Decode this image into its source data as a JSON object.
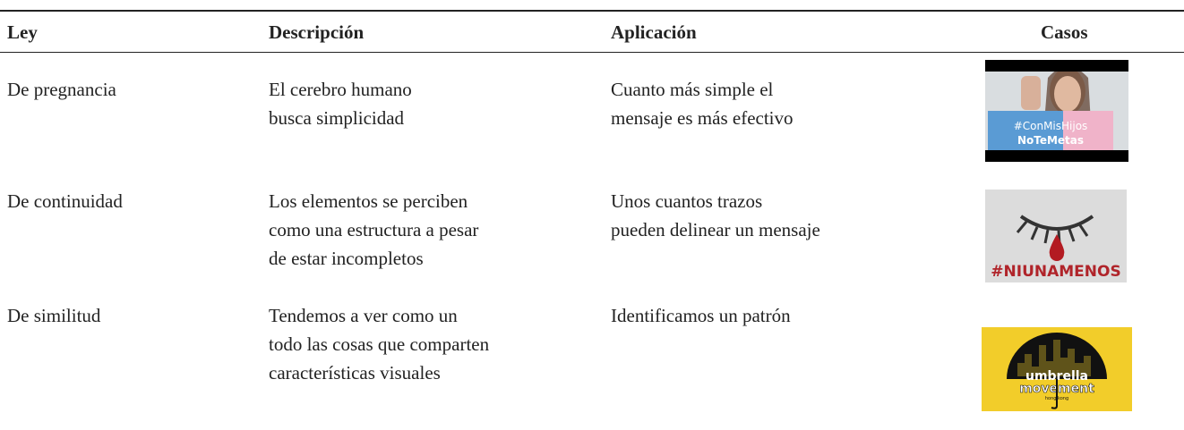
{
  "header": {
    "columns": [
      "Ley",
      "Descripción",
      "Aplicación",
      "Casos"
    ]
  },
  "table": {
    "rows": [
      {
        "ley": "De pregnancia",
        "descripcion": [
          "El cerebro humano",
          "busca simplicidad"
        ],
        "aplicacion": [
          "Cuanto más simple el",
          "mensaje es más efectivo"
        ],
        "caso": [
          "#ConMisHijos",
          "NoTeMetas"
        ]
      },
      {
        "ley": "De continuidad",
        "descripcion": [
          "Los elementos se perciben",
          "como una estructura a pesar",
          "de estar incompletos"
        ],
        "aplicacion": [
          "Unos cuantos trazos",
          "pueden delinear un mensaje"
        ],
        "caso": [
          "#NIUNAMENOS"
        ]
      },
      {
        "ley": "De similitud",
        "descripcion": [
          "Tendemos a ver como un",
          "todo las cosas que comparten",
          "características visuales"
        ],
        "aplicacion": [
          "Identificamos un patrón"
        ],
        "caso": [
          "umbrella",
          "movement",
          "hong kong"
        ]
      }
    ]
  }
}
